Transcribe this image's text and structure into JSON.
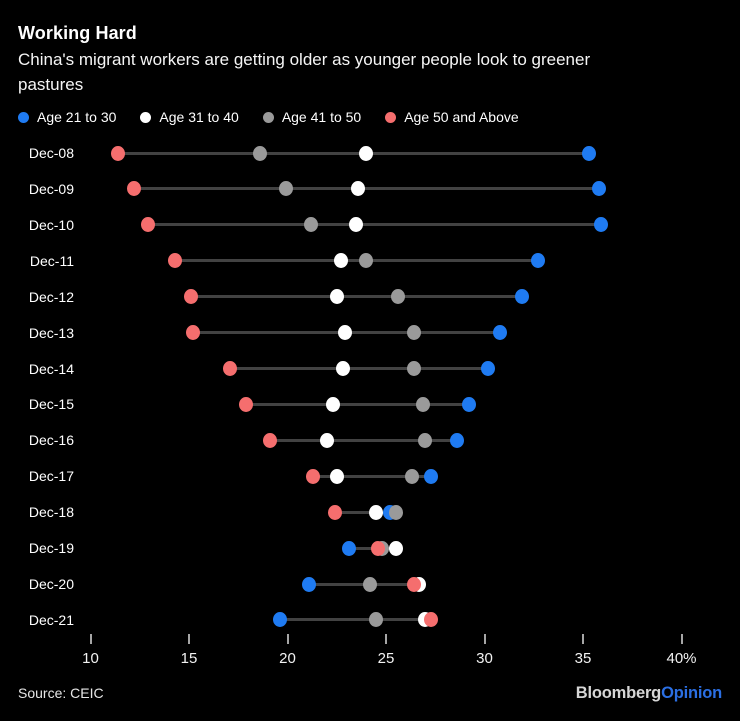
{
  "header": {
    "title": "Working Hard",
    "subtitle_lines": [
      "China's migrant workers are getting older as younger people look to greener",
      "pastures"
    ]
  },
  "colors": {
    "background": "#000000",
    "age_21_30": "#1f7bf2",
    "age_31_40": "#ffffff",
    "age_41_50": "#9a9a9a",
    "age_50_above": "#f56e6e",
    "connector_line": "#424242",
    "opinion_blue": "#2b6fe3"
  },
  "chart_data": {
    "type": "scatter",
    "subtype": "dumbbell-dot-plot",
    "categories": [
      "Dec-08",
      "Dec-09",
      "Dec-10",
      "Dec-11",
      "Dec-12",
      "Dec-13",
      "Dec-14",
      "Dec-15",
      "Dec-16",
      "Dec-17",
      "Dec-18",
      "Dec-19",
      "Dec-20",
      "Dec-21"
    ],
    "series": [
      {
        "name": "Age 21 to 30",
        "color": "#1f7bf2",
        "values": [
          35.3,
          35.8,
          35.9,
          32.7,
          31.9,
          30.8,
          30.2,
          29.2,
          28.6,
          27.3,
          25.2,
          23.1,
          21.1,
          19.6
        ]
      },
      {
        "name": "Age 31 to 40",
        "color": "#ffffff",
        "values": [
          24.0,
          23.6,
          23.5,
          22.7,
          22.5,
          22.9,
          22.8,
          22.3,
          22.0,
          22.5,
          24.5,
          25.5,
          26.7,
          27.0
        ]
      },
      {
        "name": "Age 41 to 50",
        "color": "#9a9a9a",
        "values": [
          18.6,
          19.9,
          21.2,
          24.0,
          25.6,
          26.4,
          26.4,
          26.9,
          27.0,
          26.3,
          25.5,
          24.8,
          24.2,
          24.5
        ]
      },
      {
        "name": "Age 50 and Above",
        "color": "#f56e6e",
        "values": [
          11.4,
          12.2,
          12.9,
          14.3,
          15.1,
          15.2,
          17.1,
          17.9,
          19.1,
          21.3,
          22.4,
          24.6,
          26.4,
          27.3
        ]
      }
    ],
    "x_ticks": [
      10,
      15,
      20,
      25,
      30,
      35,
      40
    ],
    "x_tick_labels": [
      "10",
      "15",
      "20",
      "25",
      "30",
      "35",
      "40%"
    ],
    "xlim": [
      10,
      40
    ],
    "unit": "%",
    "grid": false,
    "legend_position": "top-left"
  },
  "footer": {
    "source": "Source: CEIC",
    "brand_first": "Bloomberg",
    "brand_second": "Opinion"
  }
}
